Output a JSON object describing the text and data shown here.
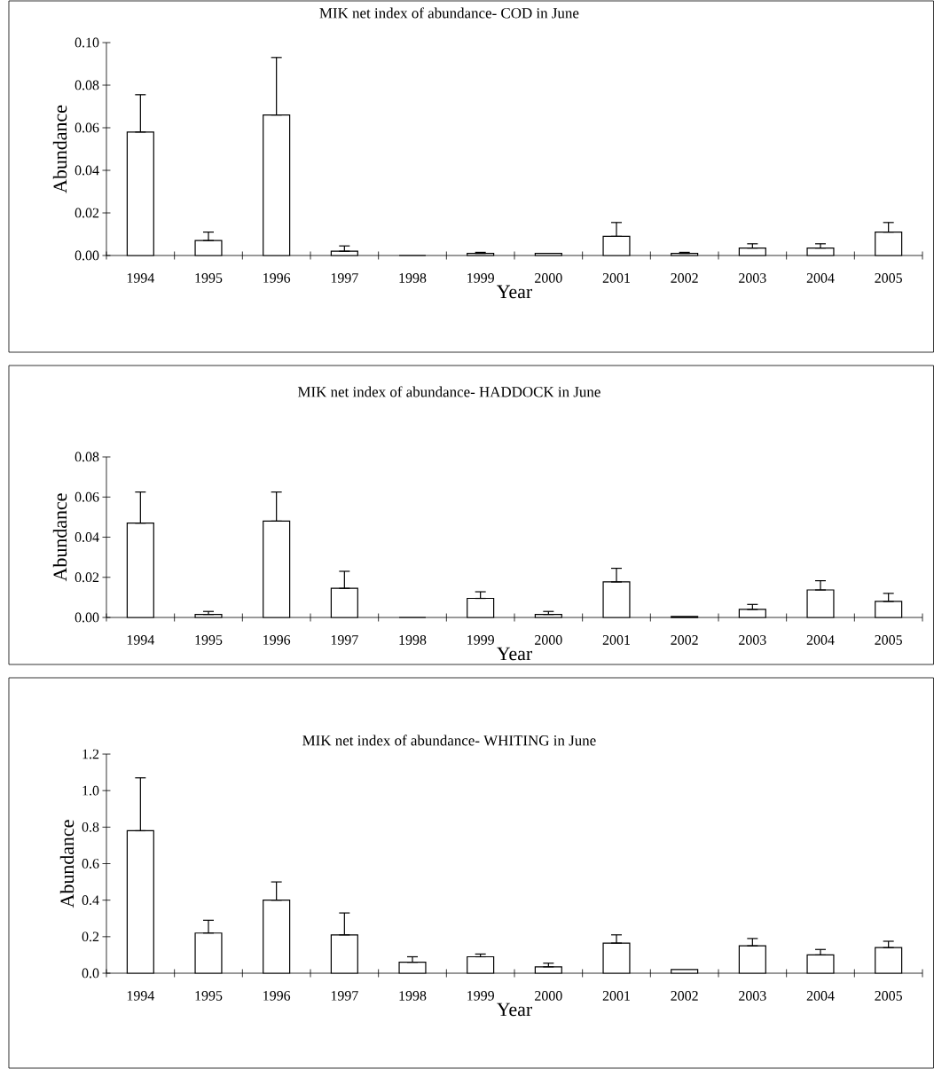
{
  "chart_data": [
    {
      "type": "bar",
      "title": "MIK net index of abundance- COD in June",
      "xlabel": "Year",
      "ylabel": "Abundance",
      "color": "#ffffff",
      "categories": [
        "1994",
        "1995",
        "1996",
        "1997",
        "1998",
        "1999",
        "2000",
        "2001",
        "2002",
        "2003",
        "2004",
        "2005"
      ],
      "values": [
        0.058,
        0.007,
        0.066,
        0.002,
        0.0,
        0.001,
        0.001,
        0.009,
        0.001,
        0.0035,
        0.0035,
        0.011
      ],
      "errors": [
        [
          0.058,
          0.0755
        ],
        [
          0.007,
          0.011
        ],
        [
          0.066,
          0.093
        ],
        [
          0.002,
          0.0045
        ],
        null,
        [
          0.001,
          0.0015
        ],
        null,
        [
          0.009,
          0.0155
        ],
        [
          0.001,
          0.0015
        ],
        [
          0.0035,
          0.0055
        ],
        [
          0.0035,
          0.0055
        ],
        [
          0.011,
          0.0155
        ]
      ],
      "ylim": [
        0,
        0.1
      ],
      "yticks": [
        {
          "value": 0,
          "label": "0.00"
        },
        {
          "value": 0.02,
          "label": "0.02"
        },
        {
          "value": 0.04,
          "label": "0.04"
        },
        {
          "value": 0.06,
          "label": "0.06"
        },
        {
          "value": 0.08,
          "label": "0.08"
        },
        {
          "value": 0.1,
          "label": "0.10"
        }
      ]
    },
    {
      "type": "bar",
      "title": "MIK net index of abundance- HADDOCK in June",
      "xlabel": "Year",
      "ylabel": "Abundance",
      "color": "#ffffff",
      "categories": [
        "1994",
        "1995",
        "1996",
        "1997",
        "1998",
        "1999",
        "2000",
        "2001",
        "2002",
        "2003",
        "2004",
        "2005"
      ],
      "values": [
        0.047,
        0.0015,
        0.048,
        0.0145,
        0.0,
        0.0095,
        0.0015,
        0.0177,
        0.0005,
        0.004,
        0.0137,
        0.008
      ],
      "errors": [
        [
          0.047,
          0.0625
        ],
        [
          0.0015,
          0.003
        ],
        [
          0.048,
          0.0625
        ],
        [
          0.0145,
          0.023
        ],
        null,
        [
          0.0095,
          0.0128
        ],
        [
          0.0015,
          0.003
        ],
        [
          0.0177,
          0.0245
        ],
        null,
        [
          0.004,
          0.0065
        ],
        [
          0.0137,
          0.0183
        ],
        [
          0.008,
          0.012
        ]
      ],
      "ylim": [
        0,
        0.08
      ],
      "yticks": [
        {
          "value": 0,
          "label": "0.00"
        },
        {
          "value": 0.02,
          "label": "0.02"
        },
        {
          "value": 0.04,
          "label": "0.04"
        },
        {
          "value": 0.06,
          "label": "0.06"
        },
        {
          "value": 0.08,
          "label": "0.08"
        }
      ]
    },
    {
      "type": "bar",
      "title": "MIK net index of abundance- WHITING in June",
      "xlabel": "Year",
      "ylabel": "Abundance",
      "color": "#ffffff",
      "categories": [
        "1994",
        "1995",
        "1996",
        "1997",
        "1998",
        "1999",
        "2000",
        "2001",
        "2002",
        "2003",
        "2004",
        "2005"
      ],
      "values": [
        0.78,
        0.22,
        0.4,
        0.21,
        0.06,
        0.09,
        0.035,
        0.165,
        0.02,
        0.15,
        0.1,
        0.14
      ],
      "errors": [
        [
          0.78,
          1.07
        ],
        [
          0.22,
          0.29
        ],
        [
          0.4,
          0.5
        ],
        [
          0.21,
          0.33
        ],
        [
          0.06,
          0.09
        ],
        [
          0.09,
          0.105
        ],
        [
          0.035,
          0.055
        ],
        [
          0.165,
          0.21
        ],
        null,
        [
          0.15,
          0.19
        ],
        [
          0.1,
          0.13
        ],
        [
          0.14,
          0.175
        ]
      ],
      "ylim": [
        0,
        1.2
      ],
      "yticks": [
        {
          "value": 0,
          "label": "0.0"
        },
        {
          "value": 0.2,
          "label": "0.2"
        },
        {
          "value": 0.4,
          "label": "0.4"
        },
        {
          "value": 0.6,
          "label": "0.6"
        },
        {
          "value": 0.8,
          "label": "0.8"
        },
        {
          "value": 1.0,
          "label": "1.0"
        },
        {
          "value": 1.2,
          "label": "1.2"
        }
      ]
    }
  ]
}
